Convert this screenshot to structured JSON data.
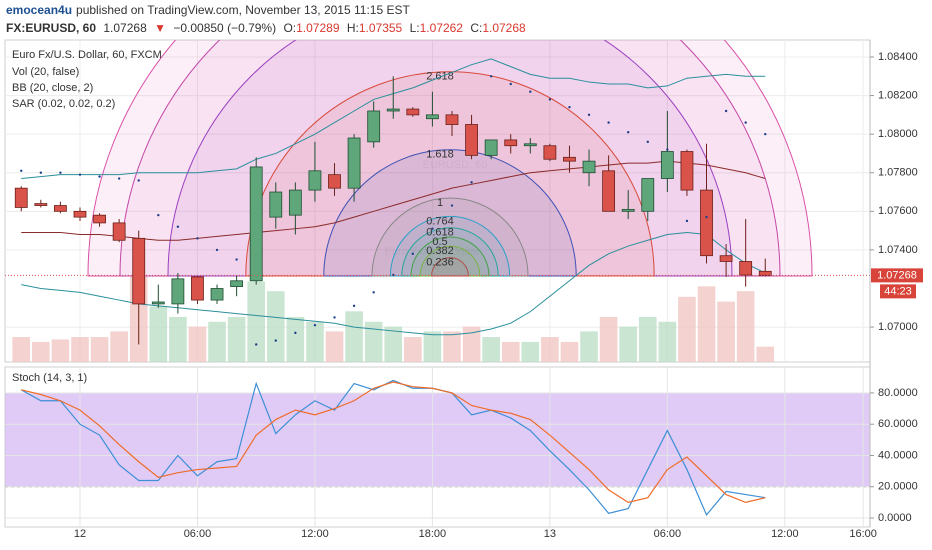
{
  "header": {
    "author": "emocean4u",
    "published": "published on TradingView.com, November 13, 2015 11:15 EST",
    "symbol": "FX:EURUSD, 60",
    "last": "1.07268",
    "arrow": "▼",
    "change": "−0.00850 (−0.79%)",
    "ohlc": [
      {
        "label": "O:",
        "value": "1.07289"
      },
      {
        "label": "H:",
        "value": "1.07355"
      },
      {
        "label": "L:",
        "value": "1.07262"
      },
      {
        "label": "C:",
        "value": "1.07268"
      }
    ]
  },
  "chart_data": [
    {
      "type": "candlestick",
      "title": "Euro Fx/U.S. Dollar, 60, FXCM",
      "watermark": "EURUSD, 60",
      "watermark_subtitle": "Euro Fx/U.S. Dollar",
      "indicators": [
        "Vol (20, false)",
        "BB (20, close, 2)",
        "SAR (0.02, 0.02, 0.2)"
      ],
      "x": [
        -3,
        -2,
        -1,
        0,
        1,
        2,
        3,
        4,
        5,
        6,
        7,
        8,
        9,
        10,
        11,
        12,
        13,
        14,
        15,
        16,
        17,
        18,
        19,
        20,
        21,
        22,
        23,
        24,
        25,
        26,
        27,
        28,
        29,
        30,
        31,
        32,
        33,
        34,
        35
      ],
      "open": [
        1.0772,
        1.0764,
        1.0763,
        1.076,
        1.0758,
        1.0754,
        1.0746,
        1.0712,
        1.0712,
        1.0726,
        1.0714,
        1.0721,
        1.0724,
        1.0757,
        1.0758,
        1.0771,
        1.0779,
        1.0772,
        1.0796,
        1.0812,
        1.0813,
        1.0808,
        1.081,
        1.0805,
        1.0789,
        1.0797,
        1.0794,
        1.0794,
        1.0788,
        1.078,
        1.0781,
        1.076,
        1.076,
        1.0777,
        1.0791,
        1.0771,
        1.0737,
        1.0734,
        1.07289
      ],
      "high": [
        1.0773,
        1.0766,
        1.0765,
        1.0762,
        1.0759,
        1.0756,
        1.075,
        1.0722,
        1.0728,
        1.0727,
        1.0722,
        1.0727,
        1.0788,
        1.0775,
        1.0775,
        1.0796,
        1.0785,
        1.08,
        1.0817,
        1.083,
        1.0814,
        1.0822,
        1.0812,
        1.081,
        1.0797,
        1.08,
        1.0798,
        1.0795,
        1.0794,
        1.0792,
        1.0789,
        1.0771,
        1.0777,
        1.0812,
        1.0792,
        1.0795,
        1.0743,
        1.0756,
        1.07355
      ],
      "low": [
        1.076,
        1.0762,
        1.0759,
        1.0755,
        1.0752,
        1.0744,
        1.0691,
        1.071,
        1.0707,
        1.0712,
        1.0712,
        1.0716,
        1.0722,
        1.0751,
        1.0748,
        1.0765,
        1.0768,
        1.0765,
        1.0793,
        1.0808,
        1.0809,
        1.0804,
        1.0799,
        1.0787,
        1.0787,
        1.079,
        1.079,
        1.0786,
        1.078,
        1.0773,
        1.076,
        1.0756,
        1.0755,
        1.077,
        1.0768,
        1.0733,
        1.0726,
        1.0721,
        1.07262
      ],
      "close": [
        1.0762,
        1.0763,
        1.076,
        1.0757,
        1.0754,
        1.0745,
        1.0712,
        1.0713,
        1.0725,
        1.0714,
        1.072,
        1.0724,
        1.0783,
        1.077,
        1.0771,
        1.0781,
        1.0772,
        1.0798,
        1.0812,
        1.0813,
        1.081,
        1.081,
        1.0805,
        1.0789,
        1.0797,
        1.0794,
        1.0795,
        1.0787,
        1.0786,
        1.0786,
        1.076,
        1.0761,
        1.0777,
        1.0791,
        1.0771,
        1.0737,
        1.0734,
        1.0727,
        1.07268
      ],
      "up_color": "#5fa67b",
      "down_color": "#d9534a",
      "up_border": "#1f4d33",
      "down_border": "#6b1f18",
      "volume": {
        "values": [
          31,
          25,
          28,
          31,
          31,
          38,
          106,
          69,
          56,
          44,
          50,
          56,
          100,
          88,
          56,
          50,
          38,
          63,
          50,
          44,
          31,
          38,
          38,
          44,
          31,
          25,
          25,
          31,
          25,
          38,
          56,
          44,
          56,
          50,
          81,
          94,
          75,
          88,
          19
        ],
        "vlim": [
          0,
          400
        ],
        "up_color": "#b9dcc4",
        "down_color": "#efc3bf"
      },
      "bb": {
        "upper": [
          1.0777,
          1.0778,
          1.0779,
          1.0779,
          1.0779,
          1.0779,
          1.078,
          1.078,
          1.078,
          1.078,
          1.0781,
          1.0782,
          1.0787,
          1.079,
          1.0795,
          1.08,
          1.0806,
          1.0812,
          1.0818,
          1.0821,
          1.0824,
          1.0828,
          1.0832,
          1.0836,
          1.0839,
          1.0835,
          1.0831,
          1.0829,
          1.0829,
          1.0827,
          1.0826,
          1.0826,
          1.0824,
          1.0825,
          1.0829,
          1.083,
          1.0831,
          1.083,
          1.083
        ],
        "middle": [
          1.0749,
          1.0749,
          1.0749,
          1.0748,
          1.0748,
          1.0747,
          1.0746,
          1.0745,
          1.0745,
          1.0746,
          1.0747,
          1.0748,
          1.0749,
          1.075,
          1.0751,
          1.0752,
          1.0754,
          1.0757,
          1.076,
          1.0763,
          1.0766,
          1.0769,
          1.0772,
          1.0774,
          1.0776,
          1.0778,
          1.078,
          1.0781,
          1.0782,
          1.0783,
          1.0784,
          1.0785,
          1.0785,
          1.0786,
          1.0785,
          1.0784,
          1.0782,
          1.078,
          1.0777
        ],
        "lower": [
          1.0722,
          1.072,
          1.0719,
          1.0718,
          1.0716,
          1.0714,
          1.0712,
          1.0711,
          1.071,
          1.0709,
          1.0708,
          1.0707,
          1.0706,
          1.0705,
          1.0704,
          1.0703,
          1.0702,
          1.07,
          1.0699,
          1.0698,
          1.0697,
          1.0696,
          1.0696,
          1.0697,
          1.0699,
          1.0702,
          1.0708,
          1.0716,
          1.0724,
          1.0732,
          1.0738,
          1.0742,
          1.0745,
          1.0748,
          1.0749,
          1.0748,
          1.074,
          1.0733,
          1.0728
        ],
        "band_color": "#2a8f9c",
        "middle_color": "#8b2a2a"
      },
      "sar": {
        "values": [
          1.0781,
          1.078,
          1.078,
          1.0779,
          1.0778,
          1.0777,
          1.0776,
          1.0758,
          1.0752,
          1.0746,
          1.074,
          1.0735,
          1.0691,
          1.0693,
          1.0697,
          1.0701,
          1.0705,
          1.0711,
          1.0718,
          1.0727,
          1.0738,
          1.0751,
          1.0763,
          1.0775,
          1.083,
          1.0826,
          1.0822,
          1.0818,
          1.0814,
          1.081,
          1.0806,
          1.0801,
          1.0796,
          1.0792,
          1.0755,
          1.0757,
          1.0812,
          1.0806,
          1.08
        ],
        "color": "#1e3f8a"
      },
      "fib": {
        "levels": [
          0.236,
          0.382,
          0.5,
          0.618,
          0.764,
          1,
          1.618,
          2.618
        ],
        "colors": [
          "#b0504a",
          "#7cb342",
          "#43a047",
          "#26a69a",
          "#29a0c8",
          "#888888",
          "#3f51b5",
          "#d84a3a"
        ]
      },
      "last_price": 1.07268,
      "countdown": "44:23",
      "xlim": [
        -3.83,
        40.35
      ],
      "ylim": [
        1.06819,
        1.08488
      ],
      "yticks": [
        {
          "value": 1.07,
          "label": "1.07000"
        },
        {
          "value": 1.074,
          "label": "1.07400"
        },
        {
          "value": 1.076,
          "label": "1.07600"
        },
        {
          "value": 1.078,
          "label": "1.07800"
        },
        {
          "value": 1.08,
          "label": "1.08000"
        },
        {
          "value": 1.082,
          "label": "1.08200"
        },
        {
          "value": 1.084,
          "label": "1.08400"
        }
      ],
      "grid": true
    },
    {
      "type": "line",
      "title": "Stoch (14, 3, 1)",
      "x": [
        -3,
        -2,
        -1,
        0,
        1,
        2,
        3,
        4,
        5,
        6,
        7,
        8,
        9,
        10,
        11,
        12,
        13,
        14,
        15,
        16,
        17,
        18,
        19,
        20,
        21,
        22,
        23,
        24,
        25,
        26,
        27,
        28,
        29,
        30,
        31,
        32,
        33,
        34,
        35
      ],
      "series": [
        {
          "color": "#3d8fd6",
          "values": [
            82,
            75,
            75,
            60,
            53,
            34,
            24,
            24,
            40,
            27,
            36,
            38,
            86,
            54,
            66,
            75,
            69,
            86,
            82,
            88,
            83,
            83,
            80,
            66,
            69,
            64,
            56,
            43,
            31,
            18,
            3,
            6,
            31,
            56,
            31,
            2,
            17,
            15,
            13
          ]
        },
        {
          "color": "#ef6c2a",
          "values": [
            82,
            79,
            75,
            69,
            59,
            47,
            36,
            26,
            29,
            31,
            32,
            33,
            53,
            63,
            69,
            66,
            70,
            75,
            83,
            87,
            84,
            83,
            80,
            72,
            69,
            67,
            63,
            53,
            42,
            31,
            18,
            10,
            13,
            31,
            39,
            27,
            15,
            10,
            13
          ]
        }
      ],
      "band": [
        20,
        80
      ],
      "band_color": "#d3b5f3",
      "xlim": [
        -3.83,
        40.35
      ],
      "ylim": [
        -5.75,
        96.6
      ],
      "yticks": [
        {
          "value": 0,
          "label": "0.0000"
        },
        {
          "value": 20,
          "label": "20.0000"
        },
        {
          "value": 40,
          "label": "40.0000"
        },
        {
          "value": 60,
          "label": "60.0000"
        },
        {
          "value": 80,
          "label": "80.0000"
        }
      ],
      "xticks": [
        {
          "value": 0,
          "label": "12"
        },
        {
          "value": 6,
          "label": "06:00"
        },
        {
          "value": 12,
          "label": "12:00"
        },
        {
          "value": 18,
          "label": "18:00"
        },
        {
          "value": 24,
          "label": "13"
        },
        {
          "value": 30,
          "label": "06:00"
        },
        {
          "value": 36,
          "label": "12:00"
        },
        {
          "value": 40,
          "label": "16:00"
        }
      ],
      "grid": true
    }
  ]
}
